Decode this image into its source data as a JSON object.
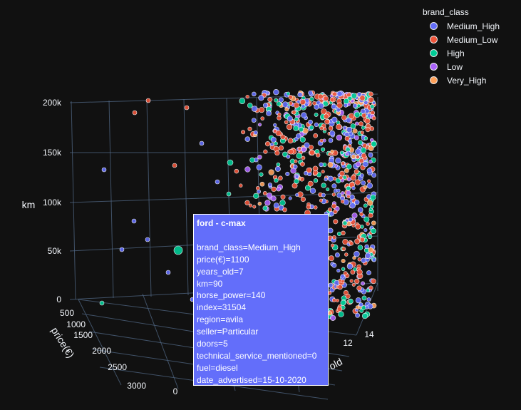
{
  "chart_data": {
    "type": "scatter3d",
    "title": "",
    "axes": {
      "z": {
        "label": "km",
        "ticks": [
          "0",
          "50k",
          "100k",
          "150k",
          "200k"
        ],
        "range": [
          0,
          200000
        ]
      },
      "x": {
        "label": "price(€)",
        "ticks": [
          "500",
          "1000",
          "1500",
          "2000",
          "2500",
          "3000"
        ],
        "range": [
          500,
          3000
        ]
      },
      "y": {
        "label": "years_old",
        "ticks": [
          "0",
          "12",
          "14"
        ],
        "range": [
          0,
          14
        ]
      }
    },
    "legend": {
      "title": "brand_class",
      "placement": "top-right",
      "items": [
        {
          "label": "Medium_High",
          "color": "#636efa"
        },
        {
          "label": "Medium_Low",
          "color": "#ef553b"
        },
        {
          "label": "High",
          "color": "#00cc96"
        },
        {
          "label": "Low",
          "color": "#ab63fa"
        },
        {
          "label": "Very_High",
          "color": "#ffa15a"
        }
      ]
    },
    "highlighted_point": {
      "brand_class": "Medium_High",
      "price": 1100,
      "years_old": 7,
      "km": 90
    }
  },
  "tooltip": {
    "title": "ford - c-max",
    "lines": [
      "brand_class=Medium_High",
      "price(€)=1100",
      "years_old=7",
      "km=90",
      "horse_power=140",
      "index=31504",
      "region=avila",
      "seller=Particular",
      "doors=5",
      "technical_service_mentioned=0",
      "fuel=diesel",
      "date_advertised=15-10-2020"
    ],
    "color": "#636efa"
  }
}
